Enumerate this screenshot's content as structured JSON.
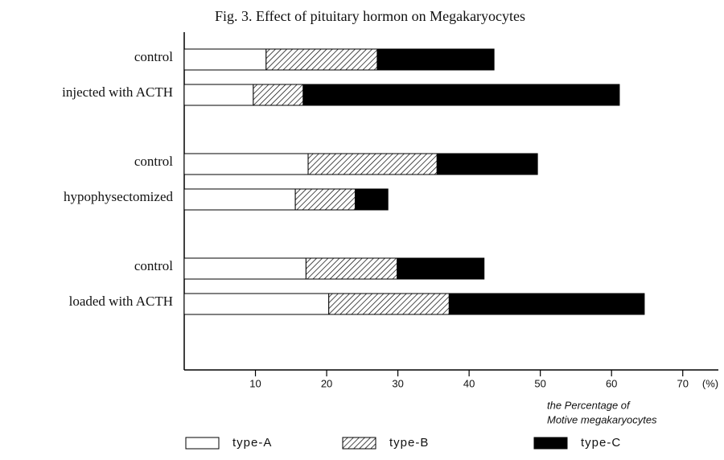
{
  "chart_data": {
    "type": "stacked-barh",
    "title": "Fig. 3.  Effect of pituitary hormon on Megakaryocytes",
    "categories": [
      "control",
      "injected with ACTH",
      "control",
      "hypophysectomized",
      "control",
      "loaded with ACTH"
    ],
    "series": [
      {
        "name": "type-A",
        "color": "#ffffff",
        "fill": "solid",
        "values": [
          11.5,
          9.7,
          17.4,
          15.6,
          17.1,
          20.3
        ]
      },
      {
        "name": "type-B",
        "color": "#000000",
        "fill": "hatch",
        "values": [
          15.6,
          7.0,
          18.1,
          8.4,
          12.8,
          16.9
        ]
      },
      {
        "name": "type-C",
        "color": "#000000",
        "fill": "solid",
        "values": [
          16.4,
          44.4,
          14.1,
          4.6,
          12.2,
          27.4
        ]
      }
    ],
    "xlim": [
      0,
      75
    ],
    "xticks": [
      10,
      20,
      30,
      40,
      50,
      60,
      70
    ],
    "x_unit": "(%)",
    "xlabel": [
      "the Percentage of",
      "Motive megakaryocytes"
    ]
  }
}
